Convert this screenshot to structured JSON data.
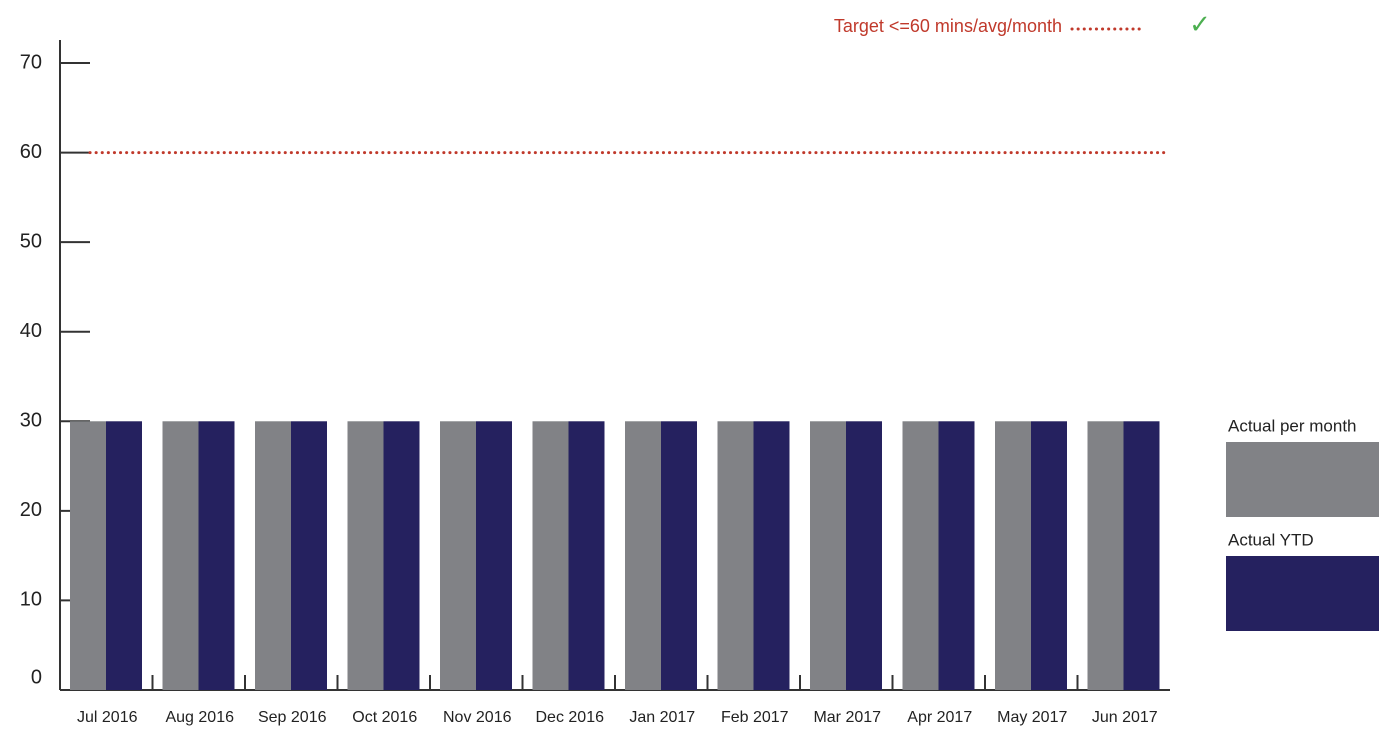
{
  "chart_data": {
    "type": "bar",
    "categories": [
      "Jul 2016",
      "Aug 2016",
      "Sep 2016",
      "Oct 2016",
      "Nov 2016",
      "Dec 2016",
      "Jan 2017",
      "Feb 2017",
      "Mar 2017",
      "Apr 2017",
      "May 2017",
      "Jun 2017"
    ],
    "series": [
      {
        "name": "Actual per month",
        "color": "#818286",
        "values": [
          30,
          30,
          30,
          30,
          30,
          30,
          30,
          30,
          30,
          30,
          30,
          30
        ]
      },
      {
        "name": "Actual YTD",
        "color": "#25215f",
        "values": [
          30,
          30,
          30,
          30,
          30,
          30,
          30,
          30,
          30,
          30,
          30,
          30
        ]
      }
    ],
    "ylim": [
      0,
      70
    ],
    "yticks": [
      0,
      10,
      20,
      30,
      40,
      50,
      60,
      70
    ],
    "target": {
      "label": "Target <=60 mins/avg/month",
      "value": 60,
      "color": "#c0392b",
      "status": "✓",
      "status_color": "#4caf50"
    }
  }
}
